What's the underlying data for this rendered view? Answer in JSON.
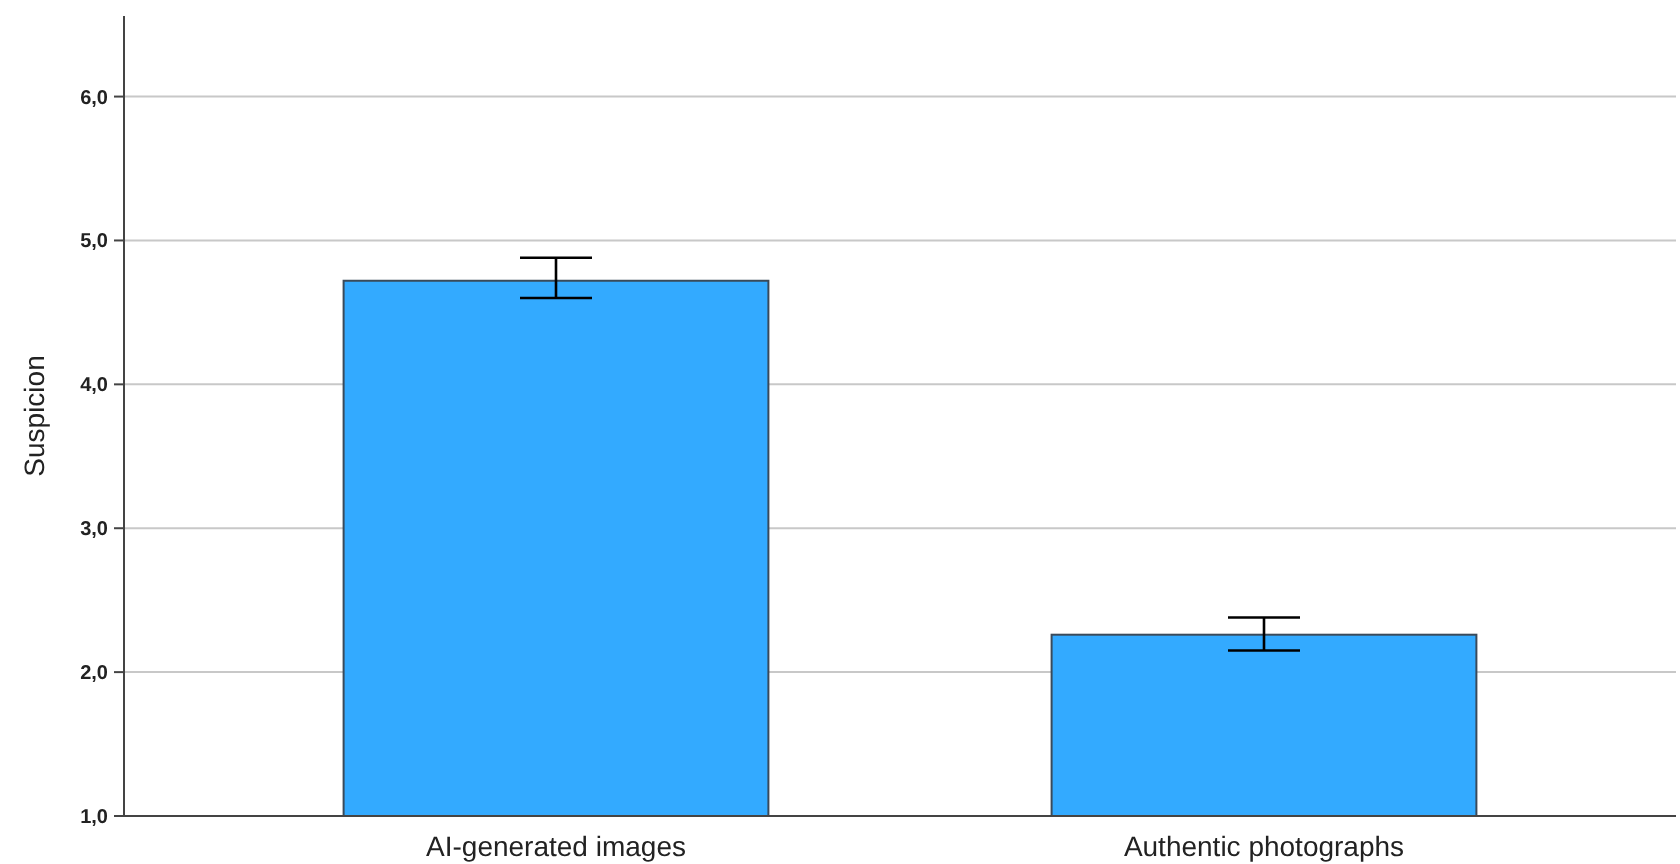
{
  "chart_data": {
    "type": "bar",
    "ylabel": "Suspicion",
    "categories": [
      "AI-generated images",
      "Authentic photographs"
    ],
    "values": [
      4.72,
      2.26
    ],
    "errors": [
      [
        4.6,
        4.88
      ],
      [
        2.15,
        2.38
      ]
    ],
    "color": "#33aaff",
    "ylim": [
      1,
      6.56
    ],
    "yticks": [
      {
        "value": 1,
        "label": "1,0"
      },
      {
        "value": 2,
        "label": "2,0"
      },
      {
        "value": 3,
        "label": "3,0"
      },
      {
        "value": 4,
        "label": "4,0"
      },
      {
        "value": 5,
        "label": "5,0"
      },
      {
        "value": 6,
        "label": "6,0"
      }
    ],
    "grid": "y"
  }
}
